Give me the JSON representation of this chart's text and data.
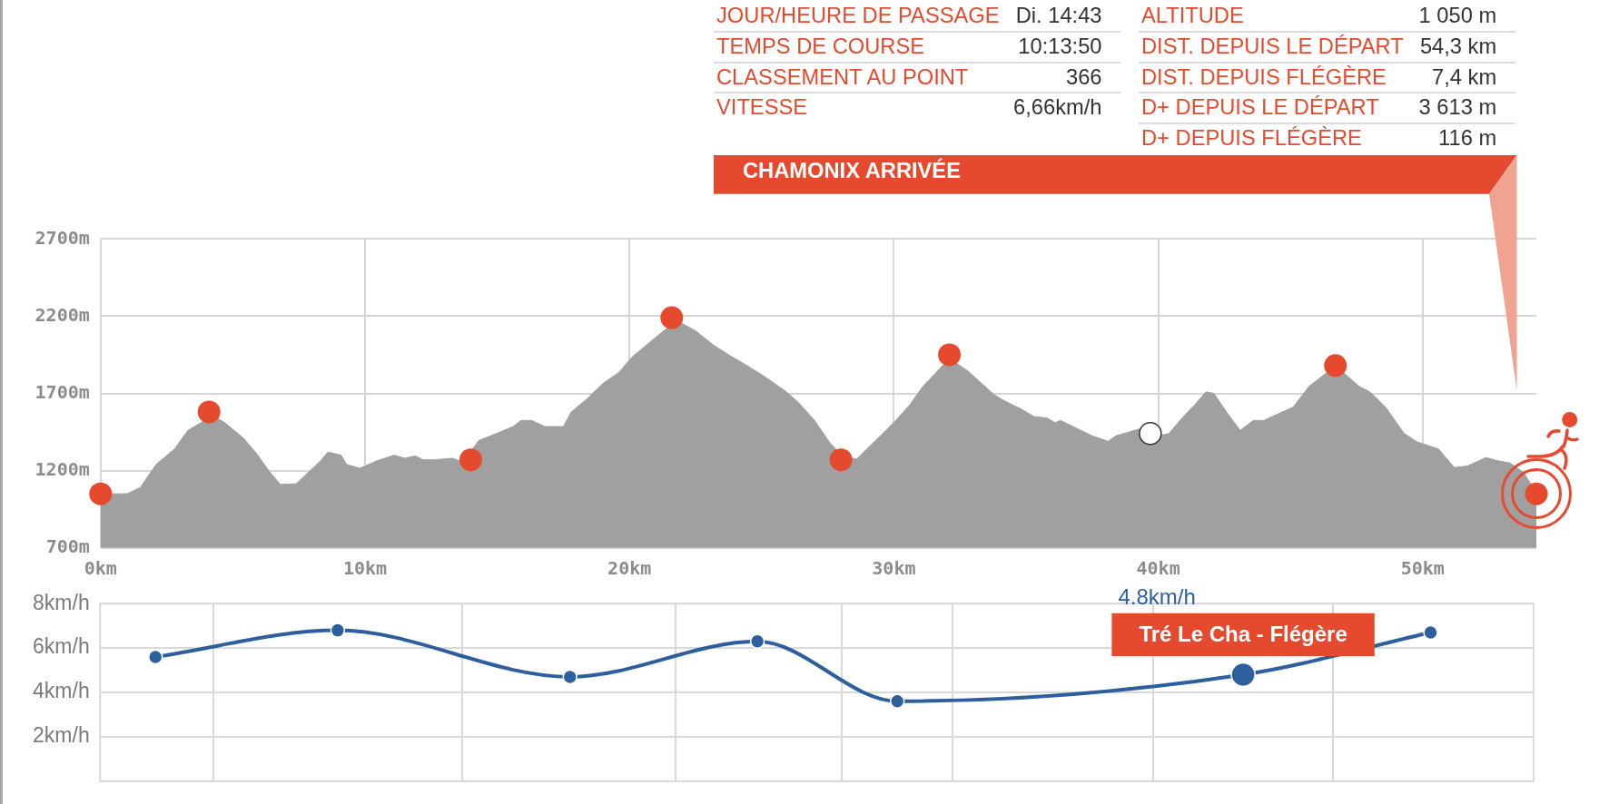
{
  "chart_data": [
    {
      "type": "other",
      "title": "CHAMONIX ARRIVÉE",
      "annotations": [
        "JOUR/HEURE DE PASSAGE",
        "Di. 14:43",
        "TEMPS DE COURSE",
        "10:13:50",
        "CLASSEMENT AU POINT",
        "366",
        "VITESSE",
        "6,66km/h",
        "ALTITUDE",
        "1 050 m",
        "DIST. DEPUIS LE DÉPART",
        "54,3 km",
        "DIST. DEPUIS FLÉGÈRE",
        "7,4 km",
        "D+ DEPUIS LE DÉPART",
        "3 613 m",
        "D+ DEPUIS FLÉGÈRE",
        "116 m"
      ]
    },
    {
      "type": "area",
      "series": [
        {
          "color": "#a0a0a0",
          "marker": "none",
          "x": [
            0,
            1.0,
            1.5,
            2.1,
            2.8,
            3.3,
            3.8,
            4.2,
            4.7,
            5.4,
            5.9,
            6.4,
            6.8,
            7.4,
            7.8,
            8.3,
            8.6,
            9.1,
            9.3,
            9.8,
            10.4,
            11.1,
            11.5,
            11.9,
            12.2,
            12.6,
            13.3,
            13.7,
            14.3,
            14.9,
            15.6,
            15.9,
            16.3,
            16.8,
            17.5,
            17.8,
            18.4,
            19.0,
            19.6,
            20.1,
            20.8,
            21.3,
            21.8,
            22.5,
            23.2,
            23.8,
            24.4,
            25.1,
            25.9,
            26.4,
            27.0,
            27.6,
            28.1,
            28.6,
            29.1,
            29.7,
            30.1,
            30.6,
            31.1,
            31.6,
            32.1,
            32.8,
            33.8,
            34.2,
            34.8,
            35.3,
            35.8,
            36.1,
            36.3,
            36.9,
            37.5,
            38.1,
            38.4,
            38.9,
            39.4,
            40.0,
            40.4,
            40.9,
            41.4,
            41.8,
            42.1,
            42.6,
            43.1,
            43.6,
            44.0,
            44.5,
            45.1,
            45.7,
            46.3,
            46.8,
            47.6,
            48.0,
            48.6,
            49.3,
            49.8,
            50.6,
            51.2,
            51.7,
            52.4,
            52.8,
            53.3,
            53.8,
            54.3
          ],
          "values": [
            1050,
            1050,
            1090,
            1240,
            1340,
            1460,
            1510,
            1560,
            1510,
            1410,
            1310,
            1190,
            1110,
            1115,
            1180,
            1260,
            1320,
            1300,
            1240,
            1215,
            1260,
            1300,
            1280,
            1295,
            1270,
            1270,
            1280,
            1255,
            1395,
            1435,
            1485,
            1525,
            1525,
            1485,
            1485,
            1580,
            1665,
            1765,
            1835,
            1935,
            2035,
            2105,
            2170,
            2105,
            2010,
            1945,
            1885,
            1810,
            1715,
            1640,
            1525,
            1375,
            1290,
            1275,
            1360,
            1460,
            1530,
            1625,
            1745,
            1835,
            1925,
            1845,
            1690,
            1650,
            1600,
            1550,
            1540,
            1510,
            1525,
            1475,
            1425,
            1390,
            1425,
            1450,
            1475,
            1425,
            1440,
            1540,
            1630,
            1710,
            1700,
            1575,
            1460,
            1525,
            1525,
            1565,
            1610,
            1745,
            1825,
            1865,
            1745,
            1710,
            1610,
            1440,
            1385,
            1340,
            1220,
            1230,
            1285,
            1265,
            1250,
            1190,
            1060
          ]
        },
        {
          "type": "scatter",
          "color": "#e64a2e",
          "x": [
            0,
            4.1,
            14.0,
            21.6,
            28.0,
            32.1,
            46.7,
            54.3
          ],
          "values": [
            1050,
            1580,
            1270,
            2190,
            1270,
            1950,
            1880,
            1050
          ]
        },
        {
          "type": "scatter",
          "color": "#ffffff",
          "x": [
            39.7
          ],
          "values": [
            1440
          ]
        }
      ],
      "xlim": [
        0,
        54.3
      ],
      "ylim": [
        700,
        2700
      ],
      "xticks": [
        {
          "value": 0,
          "label": "0km"
        },
        {
          "value": 10,
          "label": "10km"
        },
        {
          "value": 20,
          "label": "20km"
        },
        {
          "value": 30,
          "label": "30km"
        },
        {
          "value": 40,
          "label": "40km"
        },
        {
          "value": 50,
          "label": "50km"
        }
      ],
      "yticks": [
        {
          "value": 700,
          "label": "700m"
        },
        {
          "value": 1200,
          "label": "1200m"
        },
        {
          "value": 1700,
          "label": "1700m"
        },
        {
          "value": 2200,
          "label": "2200m"
        },
        {
          "value": 2700,
          "label": "2700m"
        }
      ],
      "grid": true,
      "marker": "circle"
    },
    {
      "type": "line",
      "series": [
        {
          "color": "#2d5f9f",
          "x": [
            2.1,
            9.0,
            17.8,
            24.9,
            30.2,
            43.3,
            50.4
          ],
          "values": [
            5.6,
            6.8,
            4.7,
            6.3,
            3.6,
            4.8,
            6.7
          ],
          "value_labels": [
            null,
            null,
            null,
            null,
            null,
            "4.8km/h",
            null
          ]
        }
      ],
      "xlim": [
        0,
        54.3
      ],
      "ylim": [
        0,
        8
      ],
      "xticks": [
        {
          "value": 4.3,
          "label": null
        },
        {
          "value": 13.7,
          "label": null
        },
        {
          "value": 21.8,
          "label": null
        },
        {
          "value": 28.1,
          "label": null
        },
        {
          "value": 32.3,
          "label": null
        },
        {
          "value": 39.9,
          "label": null
        },
        {
          "value": 46.7,
          "label": null
        }
      ],
      "yticks": [
        {
          "value": 0,
          "label": null
        },
        {
          "value": 2,
          "label": "2km/h"
        },
        {
          "value": 4,
          "label": "4km/h"
        },
        {
          "value": 6,
          "label": "6km/h"
        },
        {
          "value": 8,
          "label": "8km/h"
        }
      ],
      "tick_labels": "y",
      "grid": true,
      "marker": "circle",
      "annotations": [
        {
          "text": "Tré Le Cha - Flégère",
          "x": 43.3,
          "y": 4.8
        }
      ]
    }
  ]
}
